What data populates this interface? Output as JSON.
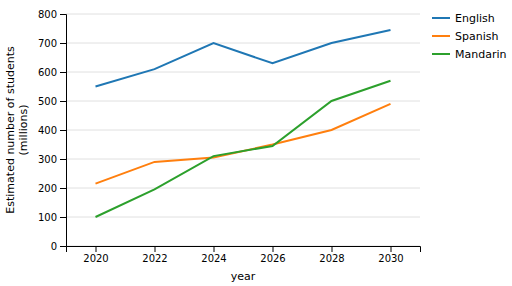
{
  "chart_data": {
    "type": "line",
    "x": [
      2020,
      2022,
      2024,
      2026,
      2028,
      2030
    ],
    "series": [
      {
        "name": "English",
        "values": [
          550,
          610,
          700,
          630,
          700,
          745
        ]
      },
      {
        "name": "Spanish",
        "values": [
          215,
          290,
          305,
          350,
          400,
          490
        ]
      },
      {
        "name": "Mandarin",
        "values": [
          100,
          195,
          310,
          345,
          500,
          570
        ]
      }
    ],
    "xlabel": "year",
    "ylabel": "Estimated number of students\n(millions)",
    "xlim": [
      2019.0,
      2031.0
    ],
    "xticks": [
      2020,
      2022,
      2024,
      2026,
      2028,
      2030
    ],
    "ylim": [
      0,
      800
    ],
    "yticks": [
      0,
      100,
      200,
      300,
      400,
      500,
      600,
      700,
      800
    ],
    "grid": true,
    "legend": "upper right"
  }
}
